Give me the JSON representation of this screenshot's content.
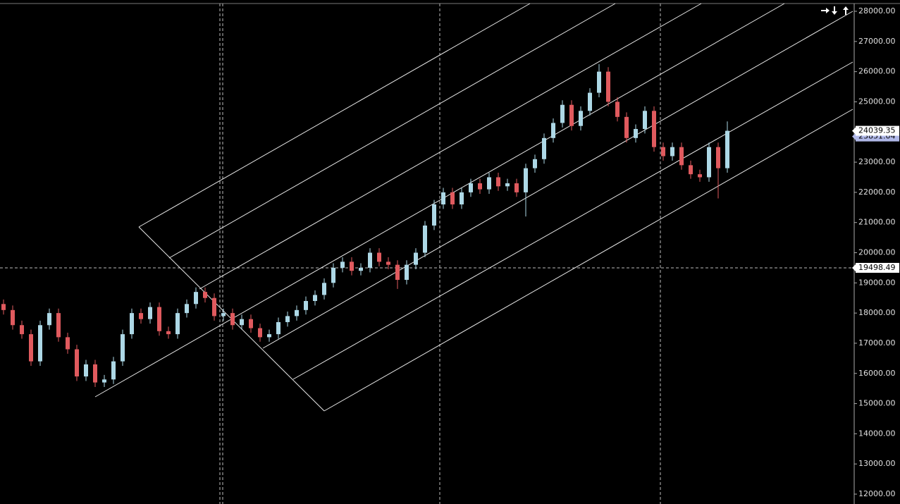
{
  "chart_data": {
    "type": "candlestick",
    "up_color": "#add8e6",
    "down_color": "#e05a5e",
    "background": "#000000",
    "ylim": [
      11673,
      28257
    ],
    "yticks": [
      {
        "value": 28000,
        "label": "28000.00"
      },
      {
        "value": 27000,
        "label": "27000.00"
      },
      {
        "value": 26000,
        "label": "26000.00"
      },
      {
        "value": 25000,
        "label": "25000.00"
      },
      {
        "value": 24000,
        "label": "24000.00"
      },
      {
        "value": 23000,
        "label": "23000.00"
      },
      {
        "value": 22000,
        "label": "22000.00"
      },
      {
        "value": 21000,
        "label": "21000.00"
      },
      {
        "value": 20000,
        "label": "20000.00"
      },
      {
        "value": 19000,
        "label": "19000.00"
      },
      {
        "value": 18000,
        "label": "18000.00"
      },
      {
        "value": 17000,
        "label": "17000.00"
      },
      {
        "value": 16000,
        "label": "16000.00"
      },
      {
        "value": 15000,
        "label": "15000.00"
      },
      {
        "value": 14000,
        "label": "14000.00"
      },
      {
        "value": 13000,
        "label": "13000.00"
      },
      {
        "value": 12000,
        "label": "12000.00"
      }
    ],
    "open": [
      18300,
      18100,
      17600,
      17300,
      16400,
      17600,
      18000,
      17200,
      16800,
      15900,
      16300,
      15700,
      15800,
      16400,
      17300,
      18000,
      17800,
      18200,
      17400,
      17300,
      18000,
      18300,
      18700,
      18500,
      17900,
      18000,
      17600,
      17800,
      17500,
      17200,
      17300,
      17700,
      17900,
      18100,
      18400,
      18600,
      19000,
      19500,
      19700,
      19400,
      19500,
      20000,
      19700,
      19600,
      19100,
      19600,
      20000,
      20900,
      21600,
      22000,
      21600,
      22000,
      22300,
      22100,
      22500,
      22200,
      22300,
      22000,
      22800,
      23100,
      23800,
      24300,
      24900,
      24200,
      24700,
      25300,
      26000,
      25000,
      24500,
      23800,
      24100,
      24700,
      23500,
      23200,
      23500,
      22900,
      22600,
      22500,
      23500,
      22800
    ],
    "high": [
      18450,
      18250,
      17750,
      17450,
      17750,
      18150,
      18150,
      17350,
      16950,
      16450,
      16450,
      15950,
      16550,
      17450,
      18150,
      18150,
      18350,
      18350,
      17550,
      18150,
      18450,
      18850,
      18850,
      18650,
      18150,
      18150,
      17950,
      17950,
      17650,
      17450,
      17850,
      18050,
      18250,
      18550,
      18750,
      19150,
      19650,
      19850,
      19850,
      19650,
      20150,
      20150,
      19850,
      19750,
      19750,
      20150,
      21050,
      21750,
      22150,
      22150,
      22150,
      22450,
      22450,
      22650,
      22650,
      22450,
      22450,
      22950,
      23250,
      23950,
      24450,
      25050,
      25050,
      24850,
      25450,
      26250,
      26150,
      25150,
      24650,
      24250,
      24850,
      24850,
      23650,
      23650,
      23650,
      23050,
      22750,
      23650,
      23650,
      24350
    ],
    "low": [
      17950,
      17450,
      17150,
      16250,
      16250,
      17450,
      17050,
      16650,
      15750,
      15750,
      15550,
      15550,
      15650,
      16250,
      17150,
      17650,
      17650,
      17250,
      17150,
      17150,
      17850,
      18150,
      18350,
      17750,
      17750,
      17450,
      17450,
      17350,
      17050,
      17050,
      17150,
      17550,
      17750,
      17950,
      18250,
      18450,
      18850,
      19350,
      19250,
      19250,
      19350,
      19550,
      19450,
      18800,
      18950,
      19450,
      19850,
      20750,
      21450,
      21450,
      21450,
      21850,
      21950,
      21950,
      22050,
      22050,
      21850,
      21200,
      22650,
      22950,
      23650,
      24150,
      24050,
      24050,
      24550,
      25150,
      24850,
      24350,
      23650,
      23650,
      23950,
      23350,
      23050,
      23050,
      22750,
      22450,
      22350,
      22350,
      21800,
      22650
    ],
    "close": [
      18100,
      17600,
      17300,
      16400,
      17600,
      18000,
      17200,
      16800,
      15900,
      16300,
      15700,
      15800,
      16400,
      17300,
      18000,
      17800,
      18200,
      17400,
      17300,
      18000,
      18300,
      18700,
      18500,
      17900,
      18000,
      17600,
      17800,
      17500,
      17200,
      17300,
      17700,
      17900,
      18100,
      18400,
      18600,
      19000,
      19500,
      19700,
      19400,
      19500,
      20000,
      19700,
      19600,
      19100,
      19600,
      20000,
      20900,
      21600,
      22000,
      21600,
      22000,
      22300,
      22100,
      22500,
      22200,
      22300,
      22000,
      22800,
      23100,
      23800,
      24300,
      24900,
      24200,
      24700,
      25300,
      26000,
      25000,
      24500,
      23800,
      24100,
      24700,
      23500,
      23200,
      23500,
      22900,
      22600,
      22500,
      23500,
      22800,
      24039.35
    ],
    "bid_price": 23851.04,
    "last_price": 24039.35,
    "crosshair_price": 19498.49
  }
}
